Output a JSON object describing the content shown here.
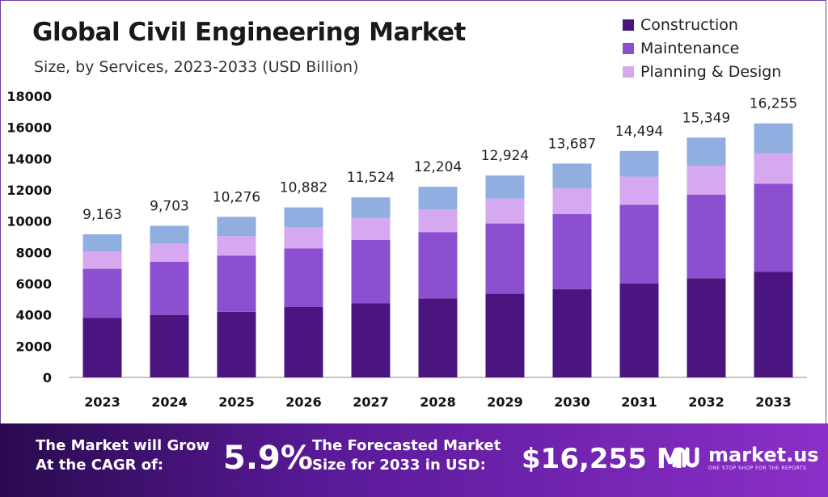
{
  "header": {
    "title": "Global Civil Engineering Market",
    "subtitle": "Size, by Services, 2023-2033 (USD Billion)"
  },
  "colors": {
    "construction": "#4b1580",
    "maintenance": "#8b4fcf",
    "planning_design": "#d6a8ef",
    "top_segment": "#91aee0",
    "footer_accent": "#6a2bb0"
  },
  "chart_data": {
    "type": "bar",
    "stacked": true,
    "categories": [
      "2023",
      "2024",
      "2025",
      "2026",
      "2027",
      "2028",
      "2029",
      "2030",
      "2031",
      "2032",
      "2033"
    ],
    "series": [
      {
        "name": "Construction",
        "values": [
          3800,
          4000,
          4200,
          4500,
          4750,
          5050,
          5350,
          5650,
          6000,
          6350,
          6750
        ]
      },
      {
        "name": "Maintenance",
        "values": [
          3150,
          3400,
          3600,
          3750,
          4050,
          4250,
          4500,
          4800,
          5050,
          5350,
          5650
        ]
      },
      {
        "name": "Planning & Design",
        "values": [
          1100,
          1150,
          1250,
          1350,
          1400,
          1450,
          1600,
          1650,
          1800,
          1850,
          1950
        ]
      },
      {
        "name": "",
        "values": [
          1113,
          1153,
          1226,
          1282,
          1324,
          1454,
          1474,
          1587,
          1644,
          1799,
          1905
        ]
      }
    ],
    "totals": [
      9163,
      9703,
      10276,
      10882,
      11524,
      12204,
      12924,
      13687,
      14494,
      15349,
      16255
    ],
    "total_labels": [
      "9,163",
      "9,703",
      "10,276",
      "10,882",
      "11,524",
      "12,204",
      "12,924",
      "13,687",
      "14,494",
      "15,349",
      "16,255"
    ],
    "ylim": [
      0,
      18000
    ],
    "yticks": [
      0,
      2000,
      4000,
      6000,
      8000,
      10000,
      12000,
      14000,
      16000,
      18000
    ],
    "ytick_labels": [
      "0",
      "2000",
      "4000",
      "6000",
      "8000",
      "10000",
      "12000",
      "14000",
      "16000",
      "18000"
    ],
    "legend": [
      "Construction",
      "Maintenance",
      "Planning & Design"
    ],
    "legend_position": "top-right",
    "grid": false
  },
  "footer": {
    "cagr_label": "The Market will Grow At the CAGR of:",
    "cagr_value": "5.9%",
    "forecast_label": "The Forecasted Market Size for 2033 in USD:",
    "forecast_value": "$16,255 M",
    "logo_name": "market.us",
    "logo_tagline": "ONE STOP SHOP FOR THE REPORTS"
  }
}
